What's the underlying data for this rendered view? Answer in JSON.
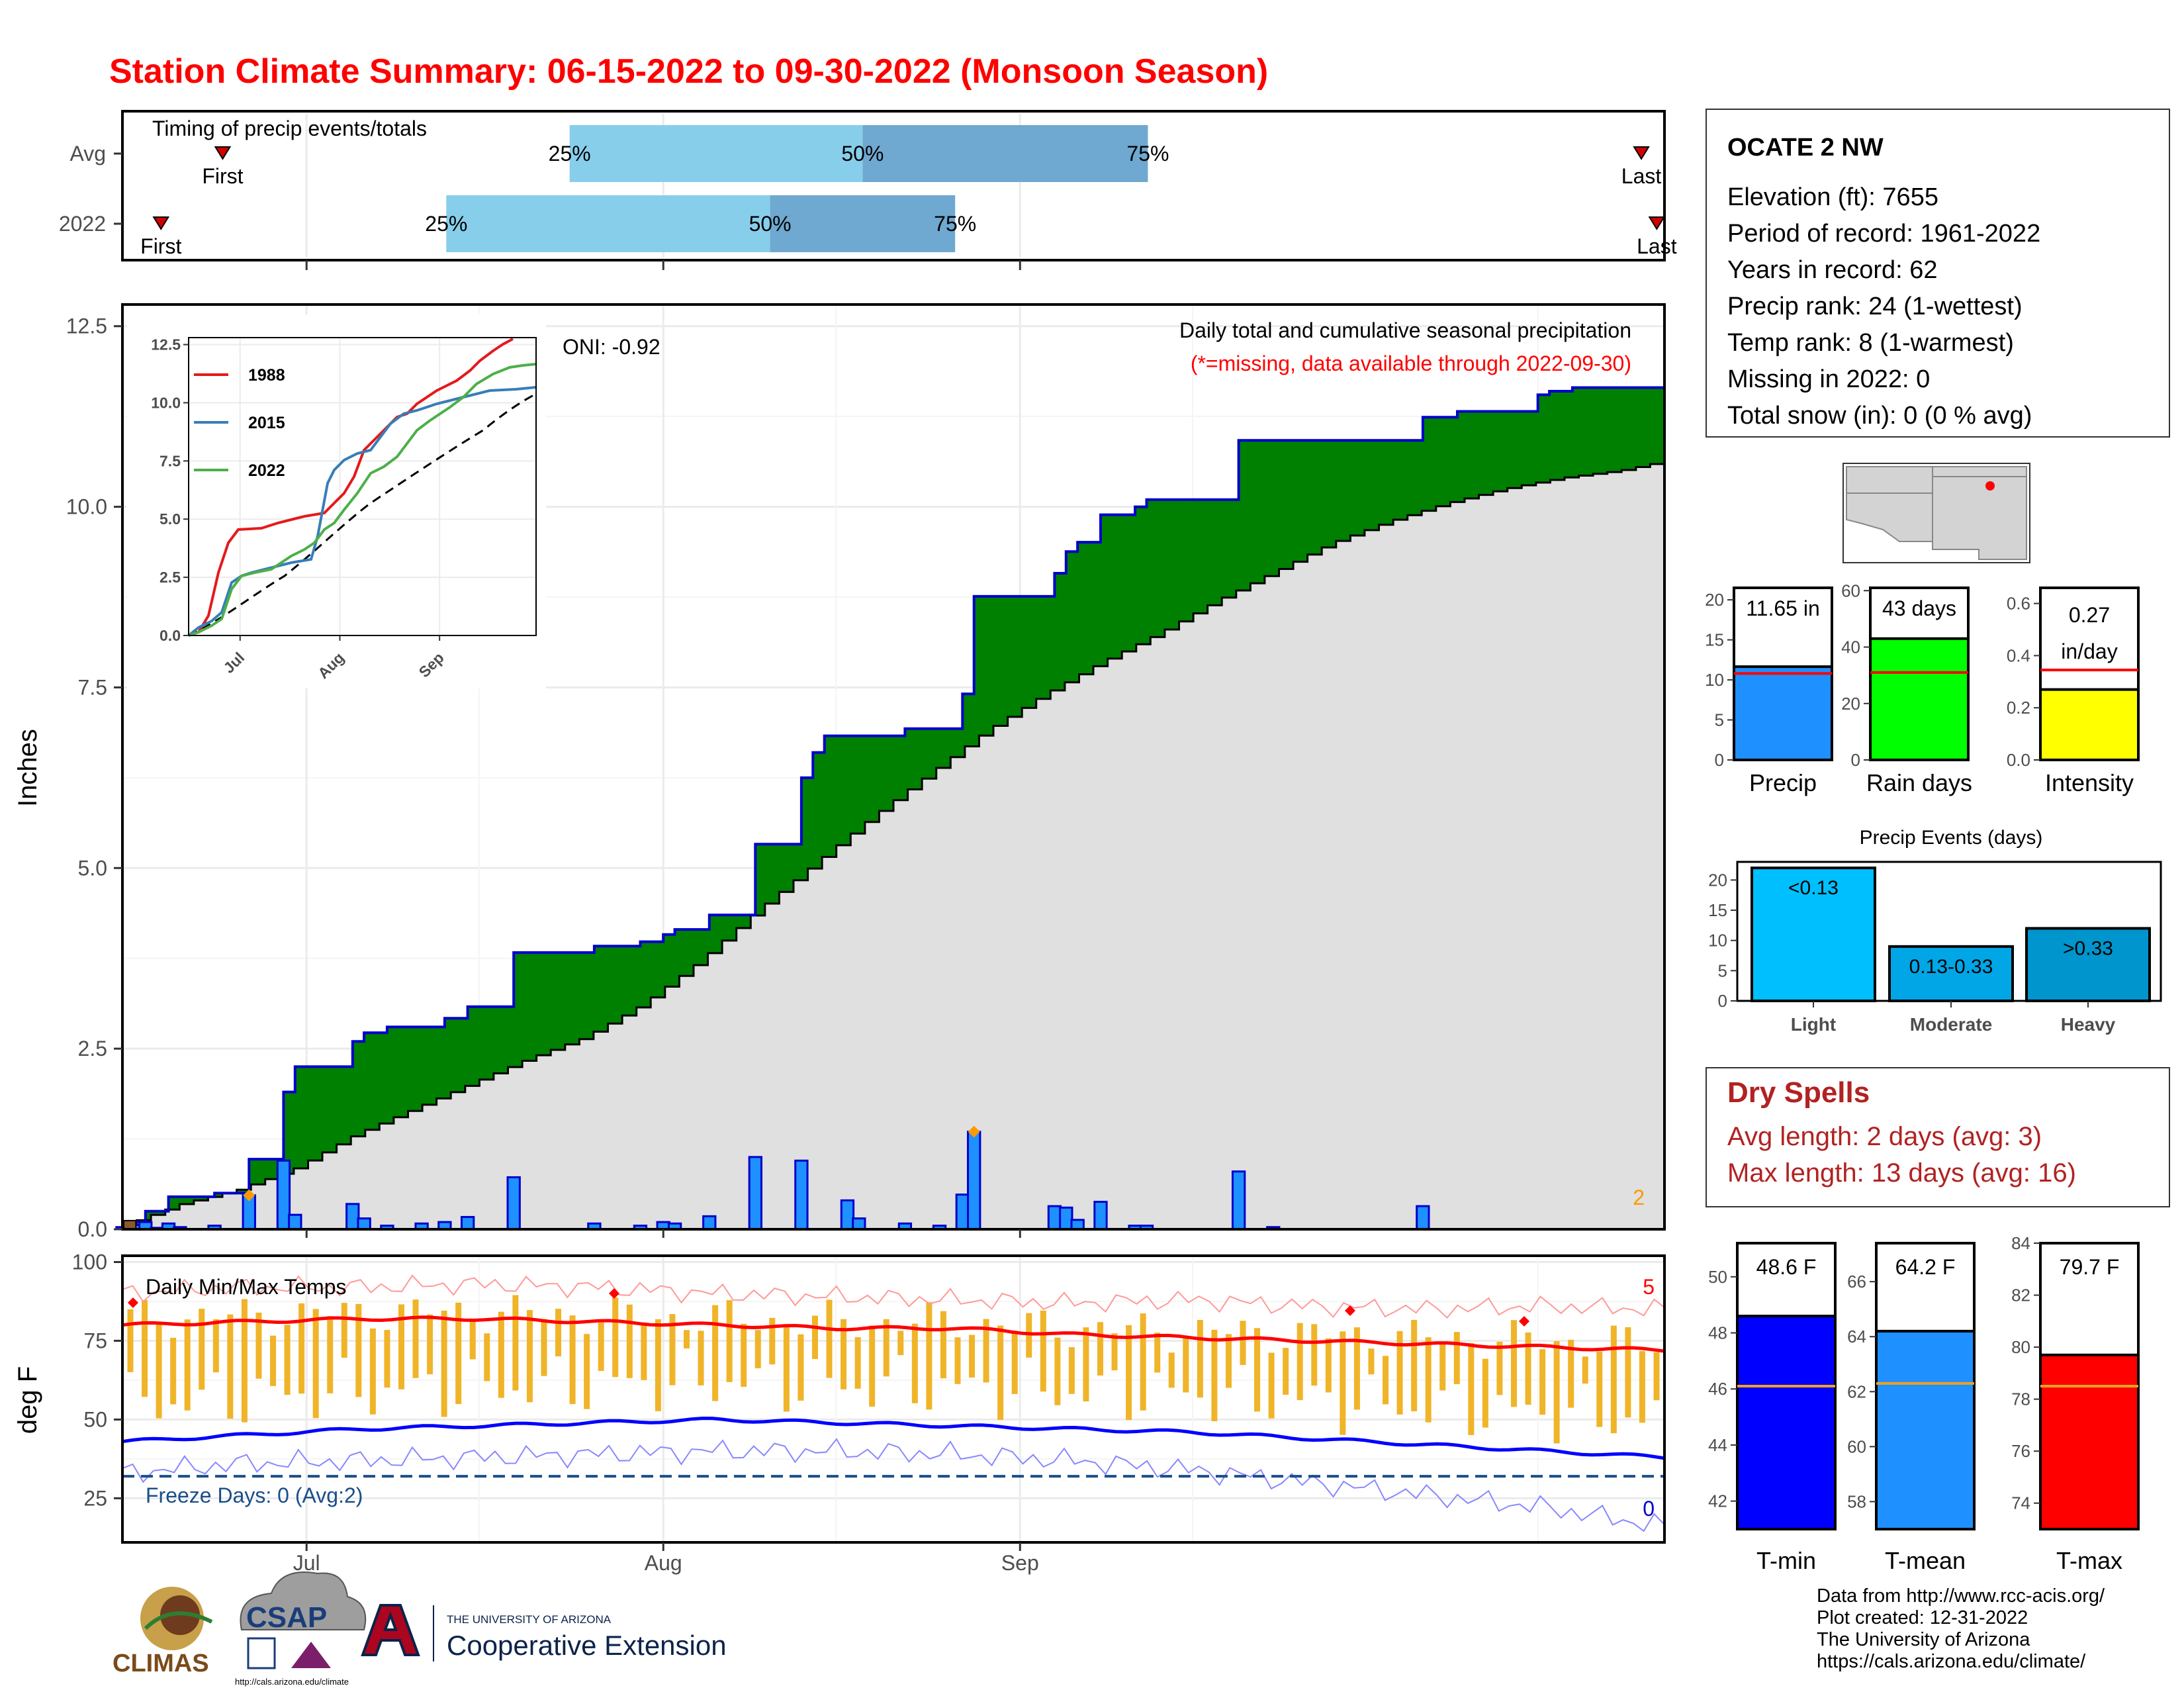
{
  "title": "Station Climate Summary: 06-15-2022 to 09-30-2022 (Monsoon Season)",
  "colors": {
    "title": "#ff0000",
    "green_fill": "#008000",
    "avg_area": "#e0e0e0",
    "bar_blue": "#1e90ff",
    "bar_edge": "#0000cc",
    "light_band": "#87ceeb",
    "dark_band": "#6fa8d0",
    "temp_bar": "#f0b429",
    "tmax_line": "#ff0000",
    "tmin_line": "#0000ff",
    "dry_text": "#b22222"
  },
  "timing": {
    "subtitle": "Timing of precip events/totals",
    "rows": [
      {
        "label": "Avg",
        "first_label": "First",
        "last_label": "Last",
        "first": 6.5,
        "last": 98.5,
        "q25": 29,
        "q50": 48,
        "q75": 66.5,
        "q25_label": "25%",
        "q50_label": "50%",
        "q75_label": "75%"
      },
      {
        "label": "2022",
        "first_label": "First",
        "last_label": "Last",
        "first": 2.5,
        "last": 99.5,
        "q25": 21,
        "q50": 42,
        "q75": 54,
        "q25_label": "25%",
        "q50_label": "50%",
        "q75_label": "75%"
      }
    ]
  },
  "precip_chart": {
    "ylabel": "Inches",
    "oni": "ONI: -0.92",
    "caption": "Daily total and cumulative seasonal precipitation",
    "missing_note": "(*=missing, data available through 2022-09-30)",
    "missing_count": "2",
    "y_ticks": [
      "0.0",
      "2.5",
      "5.0",
      "7.5",
      "10.0",
      "12.5"
    ],
    "ylim": [
      0,
      12.8
    ],
    "x_ticks": [
      "Jul",
      "Aug",
      "Sep"
    ]
  },
  "inset": {
    "y_ticks": [
      "0.0",
      "2.5",
      "5.0",
      "7.5",
      "10.0",
      "12.5"
    ],
    "x_ticks": [
      "Jul",
      "Aug",
      "Sep"
    ],
    "legend": [
      {
        "name": "1988",
        "color": "#e41a1c"
      },
      {
        "name": "2015",
        "color": "#377eb8"
      },
      {
        "name": "2022",
        "color": "#4daf4a"
      }
    ]
  },
  "temp_chart": {
    "ylabel": "deg F",
    "label": "Daily Min/Max Temps",
    "freeze": "Freeze Days: 0 (Avg:2)",
    "max_record_count": "5",
    "min_record_count": "0",
    "y_ticks": [
      "25",
      "50",
      "75",
      "100"
    ],
    "x_ticks": [
      "Jul",
      "Aug",
      "Sep"
    ],
    "freeze_line": 32
  },
  "station": {
    "name": "OCATE 2 NW",
    "lines": [
      "Elevation (ft): 7655",
      "Period of record: 1961-2022",
      "Years in record: 62",
      "Precip rank: 24 (1-wettest)",
      "Temp rank: 8 (1-warmest)",
      "Missing in 2022: 0",
      "Total snow (in): 0 (0 % avg)"
    ]
  },
  "summary_bars": [
    {
      "label": "Precip",
      "value_label": "11.65 in",
      "value": 11.65,
      "avg": 10.8,
      "ymax": 21.5,
      "ticks": [
        "0",
        "5",
        "10",
        "15",
        "20"
      ],
      "tick_vals": [
        0,
        5,
        10,
        15,
        20
      ],
      "color": "#1e90ff"
    },
    {
      "label": "Rain days",
      "value_label": "43 days",
      "value": 43,
      "avg": 31,
      "ymax": 61,
      "ticks": [
        "0",
        "20",
        "40",
        "60"
      ],
      "tick_vals": [
        0,
        20,
        40,
        60
      ],
      "color": "#00ff00"
    },
    {
      "label": "Intensity",
      "value_label": "0.27",
      "value_label2": "in/day",
      "value": 0.27,
      "avg": 0.345,
      "ymax": 0.66,
      "ticks": [
        "0.0",
        "0.2",
        "0.4",
        "0.6"
      ],
      "tick_vals": [
        0,
        0.2,
        0.4,
        0.6
      ],
      "color": "#ffff00"
    }
  ],
  "events": {
    "title": "Precip Events (days)",
    "ticks": [
      "0",
      "5",
      "10",
      "15",
      "20"
    ],
    "tick_vals": [
      0,
      5,
      10,
      15,
      20
    ],
    "ymax": 23,
    "bars": [
      {
        "label": "Light",
        "value_label": "<0.13",
        "value": 22,
        "color": "#00bfff"
      },
      {
        "label": "Moderate",
        "value_label": "0.13-0.33",
        "value": 9,
        "color": "#00a6e6"
      },
      {
        "label": "Heavy",
        "value_label": ">0.33",
        "value": 12,
        "color": "#0095cc"
      }
    ]
  },
  "dry_spells": {
    "title": "Dry Spells",
    "avg_line": "Avg length: 2 days (avg: 3)",
    "max_line": "Max length: 13 days (avg: 16)"
  },
  "temp_bars": [
    {
      "label": "T-min",
      "value_label": "48.6 F",
      "value": 48.6,
      "avg": 46.1,
      "ymin": 41,
      "ymax": 51.2,
      "ticks": [
        "42",
        "44",
        "46",
        "48",
        "50"
      ],
      "tick_vals": [
        42,
        44,
        46,
        48,
        50
      ],
      "color": "#0000ff"
    },
    {
      "label": "T-mean",
      "value_label": "64.2 F",
      "value": 64.2,
      "avg": 62.3,
      "ymin": 57,
      "ymax": 67.4,
      "ticks": [
        "58",
        "60",
        "62",
        "64",
        "66"
      ],
      "tick_vals": [
        58,
        60,
        62,
        64,
        66
      ],
      "color": "#1e90ff"
    },
    {
      "label": "T-max",
      "value_label": "79.7 F",
      "value": 79.7,
      "avg": 78.5,
      "ymin": 73,
      "ymax": 84,
      "ticks": [
        "74",
        "76",
        "78",
        "80",
        "82",
        "84"
      ],
      "tick_vals": [
        74,
        76,
        78,
        80,
        82,
        84
      ],
      "color": "#ff0000"
    }
  ],
  "credits": [
    "Data from http://www.rcc-acis.org/",
    "Plot created: 12-31-2022",
    "The University of Arizona",
    "https://cals.arizona.edu/climate/"
  ],
  "logos": {
    "climas": "CLIMAS",
    "csap": "CSAP",
    "csap_url": "http://cals.arizona.edu/climate",
    "ua_small": "THE UNIVERSITY OF ARIZONA",
    "ua_big": "Cooperative Extension"
  },
  "chart_data": {
    "type": "area",
    "x_start": "2022-06-15",
    "x_end": "2022-09-30",
    "daily_precip": [
      {
        "date": "2022-06-15",
        "value": 0.03
      },
      {
        "date": "2022-06-16",
        "value": 0.06
      },
      {
        "date": "2022-06-17",
        "value": 0.1
      },
      {
        "date": "2022-06-18",
        "value": 0.02
      },
      {
        "date": "2022-06-19",
        "value": 0.08
      },
      {
        "date": "2022-06-20",
        "value": 0.03
      },
      {
        "date": "2022-06-23",
        "value": 0.05
      },
      {
        "date": "2022-06-26",
        "value": 0.47
      },
      {
        "date": "2022-06-29",
        "value": 0.95
      },
      {
        "date": "2022-06-30",
        "value": 0.2
      },
      {
        "date": "2022-07-05",
        "value": 0.35
      },
      {
        "date": "2022-07-06",
        "value": 0.15
      },
      {
        "date": "2022-07-08",
        "value": 0.05
      },
      {
        "date": "2022-07-11",
        "value": 0.08
      },
      {
        "date": "2022-07-13",
        "value": 0.1
      },
      {
        "date": "2022-07-15",
        "value": 0.17
      },
      {
        "date": "2022-07-19",
        "value": 0.72
      },
      {
        "date": "2022-07-26",
        "value": 0.08
      },
      {
        "date": "2022-07-30",
        "value": 0.05
      },
      {
        "date": "2022-08-01",
        "value": 0.1
      },
      {
        "date": "2022-08-02",
        "value": 0.08
      },
      {
        "date": "2022-08-05",
        "value": 0.18
      },
      {
        "date": "2022-08-09",
        "value": 1.0
      },
      {
        "date": "2022-08-13",
        "value": 0.95
      },
      {
        "date": "2022-08-17",
        "value": 0.4
      },
      {
        "date": "2022-08-18",
        "value": 0.15
      },
      {
        "date": "2022-08-22",
        "value": 0.08
      },
      {
        "date": "2022-08-25",
        "value": 0.05
      },
      {
        "date": "2022-08-27",
        "value": 0.48
      },
      {
        "date": "2022-08-28",
        "value": 1.35
      },
      {
        "date": "2022-09-04",
        "value": 0.32
      },
      {
        "date": "2022-09-05",
        "value": 0.3
      },
      {
        "date": "2022-09-06",
        "value": 0.13
      },
      {
        "date": "2022-09-08",
        "value": 0.38
      },
      {
        "date": "2022-09-11",
        "value": 0.05
      },
      {
        "date": "2022-09-12",
        "value": 0.05
      },
      {
        "date": "2022-09-20",
        "value": 0.8
      },
      {
        "date": "2022-09-23",
        "value": 0.03
      },
      {
        "date": "2022-10-06",
        "value": 0.32
      }
    ],
    "cumulative_2022_steps": [
      {
        "date": "2022-06-15",
        "value": 0.1
      },
      {
        "date": "2022-06-17",
        "value": 0.25
      },
      {
        "date": "2022-06-19",
        "value": 0.45
      },
      {
        "date": "2022-06-23",
        "value": 0.5
      },
      {
        "date": "2022-06-26",
        "value": 0.97
      },
      {
        "date": "2022-06-29",
        "value": 1.9
      },
      {
        "date": "2022-06-30",
        "value": 2.25
      },
      {
        "date": "2022-07-05",
        "value": 2.6
      },
      {
        "date": "2022-07-06",
        "value": 2.72
      },
      {
        "date": "2022-07-08",
        "value": 2.8
      },
      {
        "date": "2022-07-13",
        "value": 2.92
      },
      {
        "date": "2022-07-15",
        "value": 3.08
      },
      {
        "date": "2022-07-19",
        "value": 3.83
      },
      {
        "date": "2022-07-26",
        "value": 3.92
      },
      {
        "date": "2022-07-30",
        "value": 3.98
      },
      {
        "date": "2022-08-01",
        "value": 4.08
      },
      {
        "date": "2022-08-02",
        "value": 4.15
      },
      {
        "date": "2022-08-05",
        "value": 4.35
      },
      {
        "date": "2022-08-09",
        "value": 5.33
      },
      {
        "date": "2022-08-13",
        "value": 6.25
      },
      {
        "date": "2022-08-14",
        "value": 6.6
      },
      {
        "date": "2022-08-15",
        "value": 6.83
      },
      {
        "date": "2022-08-22",
        "value": 6.93
      },
      {
        "date": "2022-08-27",
        "value": 7.41
      },
      {
        "date": "2022-08-28",
        "value": 8.76
      },
      {
        "date": "2022-09-04",
        "value": 9.08
      },
      {
        "date": "2022-09-05",
        "value": 9.38
      },
      {
        "date": "2022-09-06",
        "value": 9.51
      },
      {
        "date": "2022-09-08",
        "value": 9.89
      },
      {
        "date": "2022-09-11",
        "value": 10.0
      },
      {
        "date": "2022-09-12",
        "value": 10.1
      },
      {
        "date": "2022-09-20",
        "value": 10.92
      },
      {
        "date": "2022-10-06",
        "value": 11.24
      },
      {
        "date": "2022-10-09",
        "value": 11.32
      },
      {
        "date": "2022-10-16",
        "value": 11.55
      },
      {
        "date": "2022-10-17",
        "value": 11.6
      },
      {
        "date": "2022-10-19",
        "value": 11.65
      },
      {
        "date": "2022-10-26",
        "value": 11.65
      }
    ],
    "cumulative_avg": [
      {
        "date": "2022-06-15",
        "value": 0.05
      },
      {
        "date": "2022-06-20",
        "value": 0.35
      },
      {
        "date": "2022-06-25",
        "value": 0.55
      },
      {
        "date": "2022-06-30",
        "value": 0.85
      },
      {
        "date": "2022-07-05",
        "value": 1.3
      },
      {
        "date": "2022-07-10",
        "value": 1.65
      },
      {
        "date": "2022-07-15",
        "value": 2.0
      },
      {
        "date": "2022-07-20",
        "value": 2.35
      },
      {
        "date": "2022-07-25",
        "value": 2.65
      },
      {
        "date": "2022-07-30",
        "value": 3.1
      },
      {
        "date": "2022-08-04",
        "value": 3.7
      },
      {
        "date": "2022-08-09",
        "value": 4.4
      },
      {
        "date": "2022-08-14",
        "value": 5.05
      },
      {
        "date": "2022-08-19",
        "value": 5.7
      },
      {
        "date": "2022-08-24",
        "value": 6.3
      },
      {
        "date": "2022-08-29",
        "value": 6.9
      },
      {
        "date": "2022-09-03",
        "value": 7.4
      },
      {
        "date": "2022-09-08",
        "value": 7.85
      },
      {
        "date": "2022-09-13",
        "value": 8.25
      },
      {
        "date": "2022-09-18",
        "value": 8.7
      },
      {
        "date": "2022-09-23",
        "value": 9.1
      },
      {
        "date": "2022-09-28",
        "value": 9.5
      },
      {
        "date": "2022-10-03",
        "value": 9.8
      },
      {
        "date": "2022-10-08",
        "value": 10.05
      },
      {
        "date": "2022-10-13",
        "value": 10.25
      },
      {
        "date": "2022-10-18",
        "value": 10.4
      },
      {
        "date": "2022-10-23",
        "value": 10.5
      },
      {
        "date": "2022-10-26",
        "value": 10.6
      }
    ],
    "temperature": {
      "avg_tmax": [
        80,
        81,
        82,
        82,
        81,
        80,
        79,
        79,
        77,
        76,
        75,
        74,
        73,
        72
      ],
      "avg_tmin": [
        43,
        45,
        47,
        48,
        49,
        50,
        49,
        48,
        47,
        46,
        44,
        42,
        40,
        38
      ],
      "record_max": [
        90,
        92,
        92,
        93,
        92,
        90,
        89,
        88,
        87,
        88,
        86,
        85,
        86,
        85
      ],
      "record_min": [
        33,
        36,
        37,
        38,
        39,
        40,
        40,
        39,
        37,
        34,
        30,
        26,
        22,
        16
      ]
    }
  }
}
